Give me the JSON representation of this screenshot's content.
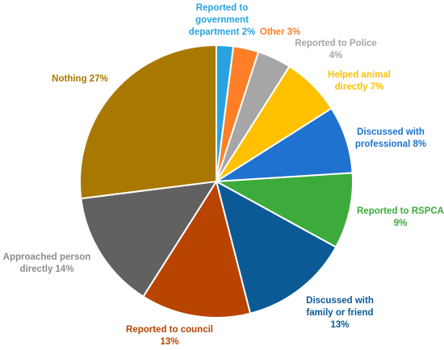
{
  "chart_data": {
    "type": "pie",
    "title": "",
    "start_angle_deg": 0,
    "direction": "clockwise",
    "slices": [
      {
        "label_lines": [
          "Reported to",
          "government",
          "department 2%"
        ],
        "value": 2,
        "color": "#29a3e0"
      },
      {
        "label_lines": [
          "Other 3%"
        ],
        "value": 3,
        "color": "#ff7f27"
      },
      {
        "label_lines": [
          "Reported to Police",
          "4%"
        ],
        "value": 4,
        "color": "#a6a6a6"
      },
      {
        "label_lines": [
          "Helped animal",
          "directly 7%"
        ],
        "value": 7,
        "color": "#ffc000"
      },
      {
        "label_lines": [
          "Discussed with",
          "professional 8%"
        ],
        "value": 8,
        "color": "#1f72cf"
      },
      {
        "label_lines": [
          "Reported to RSPCA",
          "9%"
        ],
        "value": 9,
        "color": "#3cab3c"
      },
      {
        "label_lines": [
          "Discussed with",
          "family or friend",
          "13%"
        ],
        "value": 13,
        "color": "#0b5a96"
      },
      {
        "label_lines": [
          "Reported to council",
          "13%"
        ],
        "value": 13,
        "color": "#b84400"
      },
      {
        "label_lines": [
          "Approached person",
          "directly 14%"
        ],
        "value": 14,
        "color": "#616161"
      },
      {
        "label_lines": [
          "Nothing 27%"
        ],
        "value": 27,
        "color": "#a97800"
      }
    ],
    "label_colors": [
      "#29a3e0",
      "#ff7f27",
      "#a6a6a6",
      "#ffc000",
      "#1f72cf",
      "#3cab3c",
      "#0b5a96",
      "#b84400",
      "#8c8c8c",
      "#a97800"
    ]
  }
}
